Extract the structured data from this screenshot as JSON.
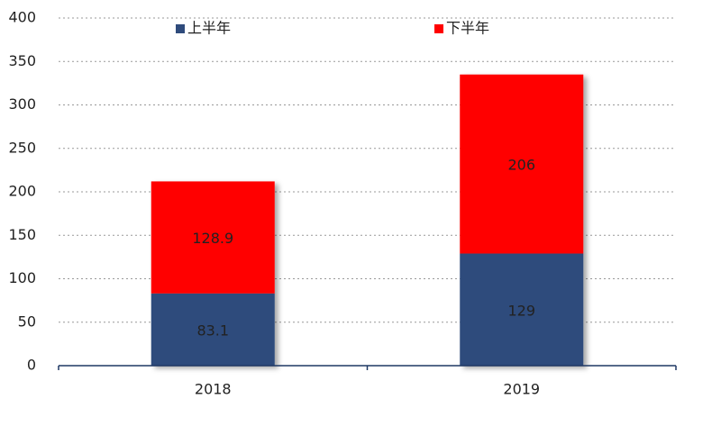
{
  "chart_data": {
    "type": "bar",
    "stacked": true,
    "categories": [
      "2018",
      "2019"
    ],
    "series": [
      {
        "name": "上半年",
        "color": "#2f4b7c",
        "values": [
          83.1,
          129
        ]
      },
      {
        "name": "下半年",
        "color": "#ff0000",
        "values": [
          128.9,
          206
        ]
      }
    ],
    "ylim": [
      0,
      400
    ],
    "yticks": [
      0,
      50,
      100,
      150,
      200,
      250,
      300,
      350,
      400
    ],
    "grid": true,
    "legend": "top"
  }
}
